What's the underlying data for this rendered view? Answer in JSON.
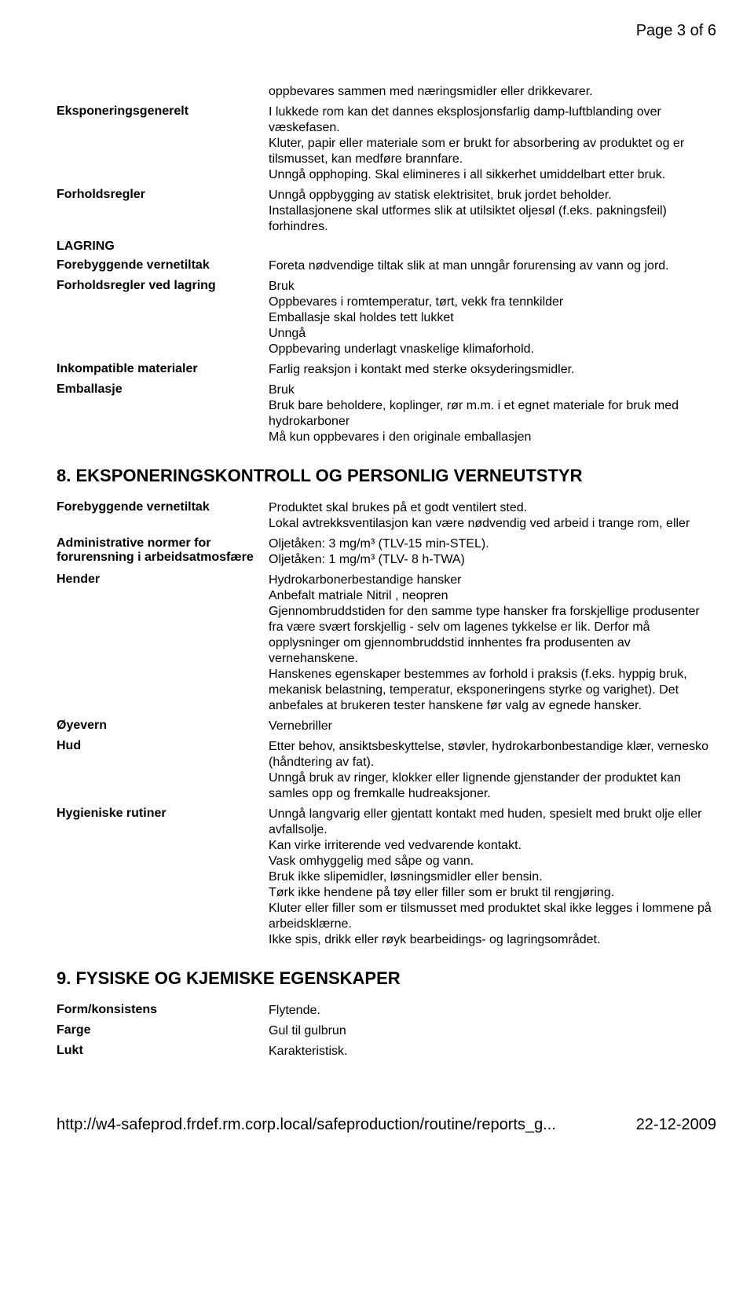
{
  "pageNumber": "Page 3 of 6",
  "rows1": [
    {
      "label": "",
      "value": "oppbevares sammen med næringsmidler eller drikkevarer."
    },
    {
      "label": "Eksponeringsgenerelt",
      "value": "I lukkede rom kan det dannes eksplosjonsfarlig damp-luftblanding over væskefasen.\nKluter, papir eller materiale som er brukt for absorbering av produktet og er tilsmusset, kan medføre brannfare.\nUnngå opphoping. Skal elimineres i all sikkerhet umiddelbart etter bruk."
    },
    {
      "label": "Forholdsregler",
      "value": "Unngå oppbygging av statisk elektrisitet, bruk jordet beholder.\nInstallasjonene skal utformes slik at utilsiktet oljesøl (f.eks. pakningsfeil) forhindres."
    },
    {
      "label": "LAGRING",
      "value": "",
      "fullLabel": true
    },
    {
      "label": "Forebyggende vernetiltak",
      "value": "Foreta nødvendige tiltak slik at man unngår forurensing av vann og jord."
    },
    {
      "label": "Forholdsregler ved lagring",
      "value": "Bruk\nOppbevares i romtemperatur, tørt, vekk fra tennkilder\nEmballasje skal holdes tett lukket\nUnngå\nOppbevaring underlagt vnaskelige klimaforhold."
    },
    {
      "label": "Inkompatible materialer",
      "value": "Farlig reaksjon i kontakt med sterke oksyderingsmidler."
    },
    {
      "label": "Emballasje",
      "value": "Bruk\nBruk bare beholdere, koplinger, rør m.m. i et egnet materiale for bruk med hydrokarboner\nMå kun oppbevares i den originale emballasjen"
    }
  ],
  "section8": "8. EKSPONERINGSKONTROLL OG PERSONLIG VERNEUTSTYR",
  "rows2": [
    {
      "label": "Forebyggende vernetiltak",
      "value": "Produktet skal brukes på et godt ventilert sted.\nLokal avtrekksventilasjon kan være nødvendig ved arbeid i trange rom, eller"
    },
    {
      "label": "Administrative normer for forurensning i arbeidsatmosfære",
      "value": "Oljetåken: 3 mg/m³ (TLV-15 min-STEL).\nOljetåken: 1 mg/m³ (TLV- 8 h-TWA)"
    },
    {
      "label": "Hender",
      "value": "Hydrokarbonerbestandige hansker\nAnbefalt matriale Nitril , neopren\nGjennombruddstiden for den samme type hansker fra forskjellige produsenter fra være svært forskjellig - selv om lagenes tykkelse er lik. Derfor må opplysninger om gjennombruddstid innhentes fra produsenten av vernehanskene.\nHanskenes egenskaper bestemmes av forhold i praksis (f.eks. hyppig bruk, mekanisk belastning, temperatur, eksponeringens styrke og varighet). Det anbefales at brukeren tester hanskene før valg av egnede hansker."
    },
    {
      "label": "Øyevern",
      "value": "Vernebriller"
    },
    {
      "label": "Hud",
      "value": "Etter behov, ansiktsbeskyttelse, støvler, hydrokarbonbestandige klær, vernesko (håndtering av fat).\nUnngå bruk av ringer, klokker eller lignende gjenstander der produktet kan samles opp og fremkalle hudreaksjoner."
    },
    {
      "label": "Hygieniske rutiner",
      "value": "Unngå langvarig eller gjentatt kontakt med huden, spesielt med brukt olje eller avfallsolje.\nKan virke irriterende ved vedvarende kontakt.\nVask omhyggelig med såpe og vann.\nBruk ikke slipemidler, løsningsmidler eller bensin.\nTørk ikke hendene på tøy eller filler som er brukt til rengjøring.\nKluter eller filler som er tilsmusset med produktet skal ikke legges i lommene på arbeidsklærne.\nIkke spis, drikk eller røyk bearbeidings- og lagringsområdet."
    }
  ],
  "section9": "9. FYSISKE OG KJEMISKE EGENSKAPER",
  "rows3": [
    {
      "label": "Form/konsistens",
      "value": "Flytende."
    },
    {
      "label": "Farge",
      "value": "Gul til gulbrun"
    },
    {
      "label": "Lukt",
      "value": "Karakteristisk."
    }
  ],
  "footerUrl": "http://w4-safeprod.frdef.rm.corp.local/safeproduction/routine/reports_g...",
  "footerDate": "22-12-2009"
}
